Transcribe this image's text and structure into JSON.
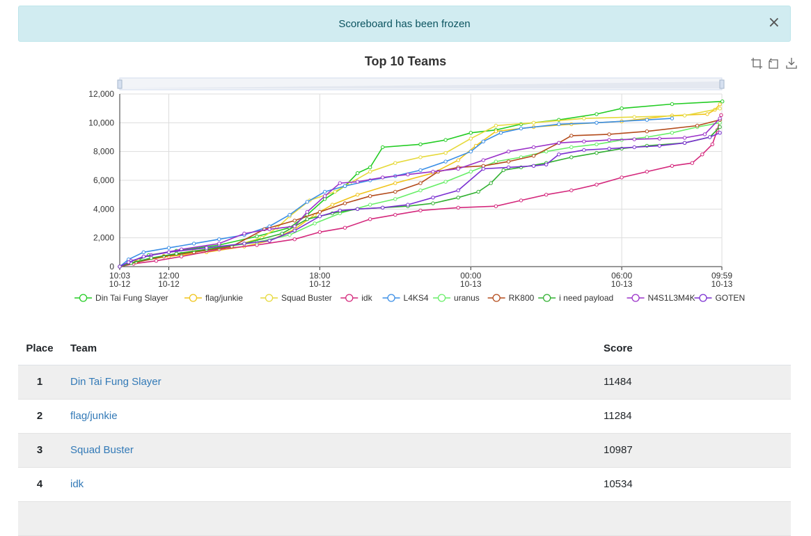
{
  "alert": {
    "message": "Scoreboard has been frozen",
    "close_glyph": "×"
  },
  "toolbox": {
    "icons": [
      "zoom-icon",
      "zoom-reset-icon",
      "download-icon"
    ]
  },
  "table": {
    "headers": {
      "place": "Place",
      "team": "Team",
      "score": "Score"
    },
    "rows": [
      {
        "place": "1",
        "team": "Din Tai Fung Slayer",
        "score": "11484"
      },
      {
        "place": "2",
        "team": "flag/junkie",
        "score": "11284"
      },
      {
        "place": "3",
        "team": "Squad Buster",
        "score": "10987"
      },
      {
        "place": "4",
        "team": "idk",
        "score": "10534"
      }
    ]
  },
  "chart_data": {
    "type": "line",
    "title": "Top 10 Teams",
    "xlabel": "",
    "ylabel": "",
    "ylim": [
      0,
      12000
    ],
    "yticks": [
      "0",
      "2,000",
      "4,000",
      "6,000",
      "8,000",
      "10,000",
      "12,000"
    ],
    "xlim": [
      "10-12 10:03",
      "10-13 09:59"
    ],
    "xticks": [
      {
        "time": "10:03",
        "date": "10-12",
        "h": 10.05
      },
      {
        "time": "12:00",
        "date": "10-12",
        "h": 12.0
      },
      {
        "time": "18:00",
        "date": "10-12",
        "h": 18.0
      },
      {
        "time": "00:00",
        "date": "10-13",
        "h": 24.0
      },
      {
        "time": "06:00",
        "date": "10-13",
        "h": 30.0
      },
      {
        "time": "09:59",
        "date": "10-13",
        "h": 33.98
      }
    ],
    "x_unit": "hours since 10-12 00:00",
    "grid": true,
    "legend_position": "bottom",
    "series": [
      {
        "name": "Din Tai Fung Slayer",
        "color": "#22cc22",
        "points": [
          [
            10.05,
            0
          ],
          [
            10.6,
            300
          ],
          [
            11.2,
            800
          ],
          [
            12.3,
            1100
          ],
          [
            14.0,
            1500
          ],
          [
            15.5,
            2100
          ],
          [
            16.8,
            2700
          ],
          [
            17.5,
            3600
          ],
          [
            18.2,
            4700
          ],
          [
            19.0,
            5600
          ],
          [
            19.5,
            6500
          ],
          [
            20.0,
            6900
          ],
          [
            20.5,
            8300
          ],
          [
            22.0,
            8500
          ],
          [
            23.0,
            8800
          ],
          [
            24.0,
            9300
          ],
          [
            25.0,
            9500
          ],
          [
            26.0,
            9900
          ],
          [
            27.5,
            10200
          ],
          [
            29.0,
            10600
          ],
          [
            30.0,
            11000
          ],
          [
            32.0,
            11300
          ],
          [
            34.0,
            11484
          ]
        ]
      },
      {
        "name": "flag/junkie",
        "color": "#f0c419",
        "points": [
          [
            10.05,
            0
          ],
          [
            10.8,
            400
          ],
          [
            12.0,
            700
          ],
          [
            13.5,
            1000
          ],
          [
            15.0,
            1400
          ],
          [
            16.0,
            1800
          ],
          [
            17.0,
            2600
          ],
          [
            17.8,
            3600
          ],
          [
            18.5,
            4300
          ],
          [
            19.5,
            5000
          ],
          [
            21.0,
            5800
          ],
          [
            22.5,
            6500
          ],
          [
            23.5,
            7400
          ],
          [
            24.2,
            8400
          ],
          [
            25.0,
            9400
          ],
          [
            26.5,
            9700
          ],
          [
            28.0,
            9900
          ],
          [
            30.0,
            10100
          ],
          [
            32.0,
            10500
          ],
          [
            33.4,
            10600
          ],
          [
            33.7,
            10900
          ],
          [
            33.9,
            11284
          ]
        ]
      },
      {
        "name": "Squad Buster",
        "color": "#e6d93a",
        "points": [
          [
            10.05,
            0
          ],
          [
            10.7,
            350
          ],
          [
            11.8,
            750
          ],
          [
            13.0,
            1100
          ],
          [
            14.3,
            1300
          ],
          [
            15.7,
            2000
          ],
          [
            16.3,
            2700
          ],
          [
            16.8,
            3500
          ],
          [
            17.6,
            4600
          ],
          [
            18.6,
            5200
          ],
          [
            19.2,
            5800
          ],
          [
            20.0,
            6600
          ],
          [
            21.0,
            7200
          ],
          [
            22.0,
            7600
          ],
          [
            23.0,
            7900
          ],
          [
            24.0,
            8900
          ],
          [
            25.0,
            9800
          ],
          [
            26.5,
            10000
          ],
          [
            28.5,
            10300
          ],
          [
            30.5,
            10400
          ],
          [
            32.5,
            10500
          ],
          [
            33.9,
            10987
          ]
        ]
      },
      {
        "name": "idk",
        "color": "#d4287c",
        "points": [
          [
            10.05,
            0
          ],
          [
            10.6,
            200
          ],
          [
            11.5,
            400
          ],
          [
            12.5,
            700
          ],
          [
            14.0,
            1200
          ],
          [
            15.5,
            1500
          ],
          [
            17.0,
            1900
          ],
          [
            18.0,
            2400
          ],
          [
            19.0,
            2700
          ],
          [
            20.0,
            3300
          ],
          [
            21.0,
            3600
          ],
          [
            22.0,
            3900
          ],
          [
            23.5,
            4100
          ],
          [
            25.0,
            4200
          ],
          [
            26.0,
            4600
          ],
          [
            27.0,
            5000
          ],
          [
            28.0,
            5300
          ],
          [
            29.0,
            5700
          ],
          [
            30.0,
            6200
          ],
          [
            31.0,
            6600
          ],
          [
            32.0,
            7000
          ],
          [
            32.8,
            7200
          ],
          [
            33.2,
            7800
          ],
          [
            33.6,
            8500
          ],
          [
            33.8,
            9500
          ],
          [
            33.95,
            10534
          ]
        ]
      },
      {
        "name": "L4KS4",
        "color": "#3a8ee6",
        "points": [
          [
            10.05,
            0
          ],
          [
            10.4,
            500
          ],
          [
            11.0,
            1000
          ],
          [
            12.0,
            1300
          ],
          [
            13.0,
            1600
          ],
          [
            14.0,
            1900
          ],
          [
            15.0,
            2200
          ],
          [
            16.0,
            2800
          ],
          [
            16.8,
            3600
          ],
          [
            17.5,
            4500
          ],
          [
            18.2,
            5200
          ],
          [
            19.0,
            5600
          ],
          [
            20.0,
            6000
          ],
          [
            21.0,
            6300
          ],
          [
            22.0,
            6700
          ],
          [
            23.0,
            7300
          ],
          [
            24.0,
            8000
          ],
          [
            24.5,
            8700
          ],
          [
            25.2,
            9300
          ],
          [
            26.0,
            9600
          ],
          [
            27.5,
            9900
          ],
          [
            29.0,
            10000
          ],
          [
            31.0,
            10200
          ],
          [
            32.0,
            10300
          ]
        ]
      },
      {
        "name": "uranus",
        "color": "#66ee66",
        "points": [
          [
            10.05,
            0
          ],
          [
            10.5,
            250
          ],
          [
            11.3,
            600
          ],
          [
            12.5,
            900
          ],
          [
            14.0,
            1300
          ],
          [
            15.5,
            1700
          ],
          [
            16.8,
            2200
          ],
          [
            17.8,
            3000
          ],
          [
            18.8,
            3700
          ],
          [
            20.0,
            4300
          ],
          [
            21.0,
            4700
          ],
          [
            22.0,
            5300
          ],
          [
            23.0,
            5900
          ],
          [
            24.0,
            6600
          ],
          [
            25.0,
            7300
          ],
          [
            26.0,
            7600
          ],
          [
            27.0,
            8000
          ],
          [
            28.0,
            8300
          ],
          [
            29.0,
            8500
          ],
          [
            30.0,
            8800
          ],
          [
            31.0,
            9000
          ],
          [
            32.0,
            9300
          ],
          [
            33.0,
            9700
          ],
          [
            33.9,
            10000
          ]
        ]
      },
      {
        "name": "RK800",
        "color": "#b34a1a",
        "points": [
          [
            10.05,
            0
          ],
          [
            10.7,
            300
          ],
          [
            11.8,
            700
          ],
          [
            13.0,
            1000
          ],
          [
            14.5,
            1400
          ],
          [
            15.8,
            2600
          ],
          [
            17.0,
            3200
          ],
          [
            18.0,
            3800
          ],
          [
            19.0,
            4400
          ],
          [
            20.0,
            4900
          ],
          [
            21.0,
            5200
          ],
          [
            22.0,
            5800
          ],
          [
            22.7,
            6600
          ],
          [
            23.5,
            6900
          ],
          [
            24.5,
            7000
          ],
          [
            25.5,
            7300
          ],
          [
            26.5,
            7700
          ],
          [
            27.5,
            8600
          ],
          [
            28.0,
            9100
          ],
          [
            29.5,
            9200
          ],
          [
            31.0,
            9400
          ],
          [
            33.0,
            9800
          ],
          [
            33.9,
            10200
          ]
        ]
      },
      {
        "name": "i need payload",
        "color": "#30b030",
        "points": [
          [
            10.05,
            0
          ],
          [
            10.5,
            250
          ],
          [
            11.3,
            600
          ],
          [
            12.3,
            900
          ],
          [
            13.5,
            1200
          ],
          [
            15.0,
            1600
          ],
          [
            16.5,
            2300
          ],
          [
            17.5,
            3300
          ],
          [
            18.5,
            3700
          ],
          [
            19.5,
            4000
          ],
          [
            20.5,
            4100
          ],
          [
            21.5,
            4200
          ],
          [
            22.5,
            4400
          ],
          [
            23.5,
            4800
          ],
          [
            24.3,
            5200
          ],
          [
            24.8,
            5800
          ],
          [
            25.3,
            6700
          ],
          [
            26.0,
            6900
          ],
          [
            27.0,
            7200
          ],
          [
            28.0,
            7600
          ],
          [
            29.0,
            7900
          ],
          [
            30.0,
            8200
          ],
          [
            31.0,
            8400
          ],
          [
            32.5,
            8600
          ],
          [
            33.5,
            9000
          ],
          [
            33.9,
            9700
          ]
        ]
      },
      {
        "name": "N4S1L3M4K",
        "color": "#9a30c8",
        "points": [
          [
            10.05,
            0
          ],
          [
            10.5,
            400
          ],
          [
            11.3,
            800
          ],
          [
            12.5,
            1200
          ],
          [
            14.0,
            1600
          ],
          [
            15.0,
            2300
          ],
          [
            16.0,
            2600
          ],
          [
            17.0,
            2800
          ],
          [
            17.5,
            3800
          ],
          [
            18.2,
            4900
          ],
          [
            18.8,
            5800
          ],
          [
            19.5,
            5900
          ],
          [
            20.5,
            6200
          ],
          [
            21.5,
            6400
          ],
          [
            22.5,
            6600
          ],
          [
            23.5,
            6800
          ],
          [
            24.5,
            7400
          ],
          [
            25.5,
            8000
          ],
          [
            26.5,
            8300
          ],
          [
            27.5,
            8600
          ],
          [
            28.5,
            8700
          ],
          [
            29.5,
            8800
          ],
          [
            30.5,
            8850
          ],
          [
            31.5,
            8900
          ],
          [
            32.5,
            8950
          ],
          [
            33.3,
            9200
          ],
          [
            33.9,
            10300
          ]
        ]
      },
      {
        "name": "GOTEN",
        "color": "#7a2ed1",
        "points": [
          [
            10.05,
            0
          ],
          [
            10.4,
            300
          ],
          [
            11.0,
            700
          ],
          [
            12.0,
            1000
          ],
          [
            13.5,
            1300
          ],
          [
            15.0,
            1600
          ],
          [
            16.0,
            1800
          ],
          [
            17.0,
            2500
          ],
          [
            18.0,
            3500
          ],
          [
            18.8,
            3900
          ],
          [
            19.5,
            4000
          ],
          [
            20.5,
            4100
          ],
          [
            21.5,
            4300
          ],
          [
            22.5,
            4800
          ],
          [
            23.5,
            5300
          ],
          [
            24.5,
            6800
          ],
          [
            25.5,
            6900
          ],
          [
            26.5,
            7000
          ],
          [
            27.0,
            7100
          ],
          [
            27.5,
            7800
          ],
          [
            28.5,
            8100
          ],
          [
            29.5,
            8200
          ],
          [
            30.5,
            8300
          ],
          [
            31.5,
            8400
          ],
          [
            32.5,
            8600
          ],
          [
            33.5,
            9000
          ],
          [
            33.9,
            9300
          ]
        ]
      }
    ]
  }
}
